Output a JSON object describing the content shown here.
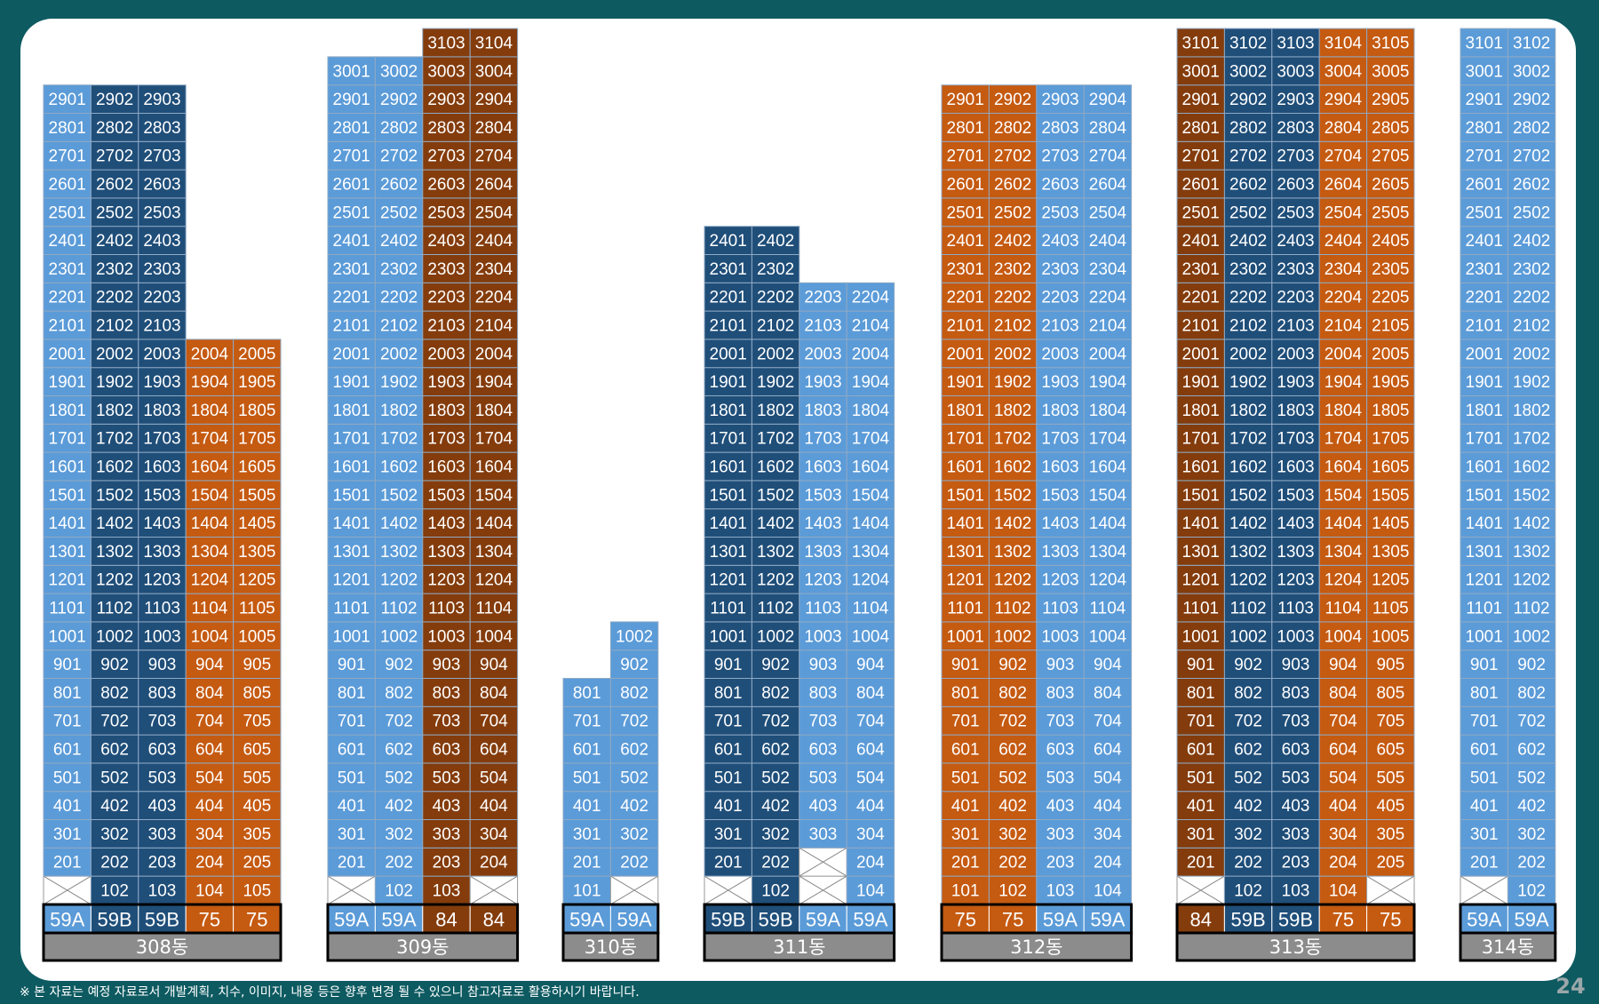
{
  "buildings": [
    {
      "name": "308동",
      "columns": [
        {
          "type": "59A",
          "color": "#5b9bd8",
          "units": [
            null,
            201,
            301,
            401,
            501,
            601,
            701,
            801,
            901,
            1001,
            1101,
            1201,
            1301,
            1401,
            1501,
            1601,
            1701,
            1801,
            1901,
            2001,
            2101,
            2201,
            2301,
            2401,
            2501,
            2601,
            2701,
            2801,
            2901
          ]
        },
        {
          "type": "59B",
          "color": "#1f4e79",
          "units": [
            102,
            202,
            302,
            402,
            502,
            602,
            702,
            802,
            902,
            1002,
            1102,
            1202,
            1302,
            1402,
            1502,
            1602,
            1702,
            1802,
            1902,
            2002,
            2102,
            2202,
            2302,
            2402,
            2502,
            2602,
            2702,
            2802,
            2902
          ]
        },
        {
          "type": "59B",
          "color": "#1f4e79",
          "units": [
            103,
            203,
            303,
            403,
            503,
            603,
            703,
            803,
            903,
            1003,
            1103,
            1203,
            1303,
            1403,
            1503,
            1603,
            1703,
            1803,
            1903,
            2003,
            2103,
            2203,
            2303,
            2403,
            2503,
            2603,
            2703,
            2803,
            2903
          ]
        },
        {
          "type": "75",
          "color": "#c55a11",
          "units": [
            104,
            204,
            304,
            404,
            504,
            604,
            704,
            804,
            904,
            1004,
            1104,
            1204,
            1304,
            1404,
            1504,
            1604,
            1704,
            1804,
            1904,
            2004
          ]
        },
        {
          "type": "75",
          "color": "#c55a11",
          "units": [
            105,
            205,
            305,
            405,
            505,
            605,
            705,
            805,
            905,
            1005,
            1105,
            1205,
            1305,
            1405,
            1505,
            1605,
            1705,
            1805,
            1905,
            2005
          ]
        }
      ]
    },
    {
      "name": "309동",
      "columns": [
        {
          "type": "59A",
          "color": "#5b9bd8",
          "units": [
            null,
            201,
            301,
            401,
            501,
            601,
            701,
            801,
            901,
            1001,
            1101,
            1201,
            1301,
            1401,
            1501,
            1601,
            1701,
            1801,
            1901,
            2001,
            2101,
            2201,
            2301,
            2401,
            2501,
            2601,
            2701,
            2801,
            2901,
            3001
          ]
        },
        {
          "type": "59A",
          "color": "#5b9bd8",
          "units": [
            102,
            202,
            302,
            402,
            502,
            602,
            702,
            802,
            902,
            1002,
            1102,
            1202,
            1302,
            1402,
            1502,
            1602,
            1702,
            1802,
            1902,
            2002,
            2102,
            2202,
            2302,
            2402,
            2502,
            2602,
            2702,
            2802,
            2902,
            3002
          ]
        },
        {
          "type": "84",
          "color": "#843c0c",
          "units": [
            103,
            203,
            303,
            403,
            503,
            603,
            703,
            803,
            903,
            1003,
            1103,
            1203,
            1303,
            1403,
            1503,
            1603,
            1703,
            1803,
            1903,
            2003,
            2103,
            2203,
            2303,
            2403,
            2503,
            2603,
            2703,
            2803,
            2903,
            3003,
            3103
          ]
        },
        {
          "type": "84",
          "color": "#843c0c",
          "units": [
            null,
            204,
            304,
            404,
            504,
            604,
            704,
            804,
            904,
            1004,
            1104,
            1204,
            1304,
            1404,
            1504,
            1604,
            1704,
            1804,
            1904,
            2004,
            2104,
            2204,
            2304,
            2404,
            2504,
            2604,
            2704,
            2804,
            2904,
            3004,
            3104
          ]
        }
      ]
    },
    {
      "name": "310동",
      "columns": [
        {
          "type": "59A",
          "color": "#5b9bd8",
          "units": [
            101,
            201,
            301,
            401,
            501,
            601,
            701,
            801
          ]
        },
        {
          "type": "59A",
          "color": "#5b9bd8",
          "units": [
            null,
            202,
            302,
            402,
            502,
            602,
            702,
            802,
            902,
            1002
          ]
        }
      ]
    },
    {
      "name": "311동",
      "columns": [
        {
          "type": "59B",
          "color": "#1f4e79",
          "units": [
            null,
            201,
            301,
            401,
            501,
            601,
            701,
            801,
            901,
            1001,
            1101,
            1201,
            1301,
            1401,
            1501,
            1601,
            1701,
            1801,
            1901,
            2001,
            2101,
            2201,
            2301,
            2401
          ]
        },
        {
          "type": "59B",
          "color": "#1f4e79",
          "units": [
            102,
            202,
            302,
            402,
            502,
            602,
            702,
            802,
            902,
            1002,
            1102,
            1202,
            1302,
            1402,
            1502,
            1602,
            1702,
            1802,
            1902,
            2002,
            2102,
            2202,
            2302,
            2402
          ]
        },
        {
          "type": "59A",
          "color": "#5b9bd8",
          "units": [
            null,
            null,
            303,
            403,
            503,
            603,
            703,
            803,
            903,
            1003,
            1103,
            1203,
            1303,
            1403,
            1503,
            1603,
            1703,
            1803,
            1903,
            2003,
            2103,
            2203
          ]
        },
        {
          "type": "59A",
          "color": "#5b9bd8",
          "units": [
            104,
            204,
            304,
            404,
            504,
            604,
            704,
            804,
            904,
            1004,
            1104,
            1204,
            1304,
            1404,
            1504,
            1604,
            1704,
            1804,
            1904,
            2004,
            2104,
            2204
          ]
        }
      ]
    },
    {
      "name": "312동",
      "columns": [
        {
          "type": "75",
          "color": "#c55a11",
          "units": [
            101,
            201,
            301,
            401,
            501,
            601,
            701,
            801,
            901,
            1001,
            1101,
            1201,
            1301,
            1401,
            1501,
            1601,
            1701,
            1801,
            1901,
            2001,
            2101,
            2201,
            2301,
            2401,
            2501,
            2601,
            2701,
            2801,
            2901
          ]
        },
        {
          "type": "75",
          "color": "#c55a11",
          "units": [
            102,
            202,
            302,
            402,
            502,
            602,
            702,
            802,
            902,
            1002,
            1102,
            1202,
            1302,
            1402,
            1502,
            1602,
            1702,
            1802,
            1902,
            2002,
            2102,
            2202,
            2302,
            2402,
            2502,
            2602,
            2702,
            2802,
            2902
          ]
        },
        {
          "type": "59A",
          "color": "#5b9bd8",
          "units": [
            103,
            203,
            303,
            403,
            503,
            603,
            703,
            803,
            903,
            1003,
            1103,
            1203,
            1303,
            1403,
            1503,
            1603,
            1703,
            1803,
            1903,
            2003,
            2103,
            2203,
            2303,
            2403,
            2503,
            2603,
            2703,
            2803,
            2903
          ]
        },
        {
          "type": "59A",
          "color": "#5b9bd8",
          "units": [
            104,
            204,
            304,
            404,
            504,
            604,
            704,
            804,
            904,
            1004,
            1104,
            1204,
            1304,
            1404,
            1504,
            1604,
            1704,
            1804,
            1904,
            2004,
            2104,
            2204,
            2304,
            2404,
            2504,
            2604,
            2704,
            2804,
            2904
          ]
        }
      ]
    },
    {
      "name": "313동",
      "columns": [
        {
          "type": "84",
          "color": "#843c0c",
          "units": [
            null,
            201,
            301,
            401,
            501,
            601,
            701,
            801,
            901,
            1001,
            1101,
            1201,
            1301,
            1401,
            1501,
            1601,
            1701,
            1801,
            1901,
            2001,
            2101,
            2201,
            2301,
            2401,
            2501,
            2601,
            2701,
            2801,
            2901,
            3001,
            3101
          ]
        },
        {
          "type": "59B",
          "color": "#1f4e79",
          "units": [
            102,
            202,
            302,
            402,
            502,
            602,
            702,
            802,
            902,
            1002,
            1102,
            1202,
            1302,
            1402,
            1502,
            1602,
            1702,
            1802,
            1902,
            2002,
            2102,
            2202,
            2302,
            2402,
            2502,
            2602,
            2702,
            2802,
            2902,
            3002,
            3102
          ]
        },
        {
          "type": "59B",
          "color": "#1f4e79",
          "units": [
            103,
            203,
            303,
            403,
            503,
            603,
            703,
            803,
            903,
            1003,
            1103,
            1203,
            1303,
            1403,
            1503,
            1603,
            1703,
            1803,
            1903,
            2003,
            2103,
            2203,
            2303,
            2403,
            2503,
            2603,
            2703,
            2803,
            2903,
            3003,
            3103
          ]
        },
        {
          "type": "75",
          "color": "#c55a11",
          "units": [
            104,
            204,
            304,
            404,
            504,
            604,
            704,
            804,
            904,
            1004,
            1104,
            1204,
            1304,
            1404,
            1504,
            1604,
            1704,
            1804,
            1904,
            2004,
            2104,
            2204,
            2304,
            2404,
            2504,
            2604,
            2704,
            2804,
            2904,
            3004,
            3104
          ]
        },
        {
          "type": "75",
          "color": "#c55a11",
          "units": [
            null,
            205,
            305,
            405,
            505,
            605,
            705,
            805,
            905,
            1005,
            1105,
            1205,
            1305,
            1405,
            1505,
            1605,
            1705,
            1805,
            1905,
            2005,
            2105,
            2205,
            2305,
            2405,
            2505,
            2605,
            2705,
            2805,
            2905,
            3005,
            3105
          ]
        }
      ]
    },
    {
      "name": "314동",
      "columns": [
        {
          "type": "59A",
          "color": "#5b9bd8",
          "units": [
            null,
            201,
            301,
            401,
            501,
            601,
            701,
            801,
            901,
            1001,
            1101,
            1201,
            1301,
            1401,
            1501,
            1601,
            1701,
            1801,
            1901,
            2001,
            2101,
            2201,
            2301,
            2401,
            2501,
            2601,
            2701,
            2801,
            2901,
            3001,
            3101
          ]
        },
        {
          "type": "59A",
          "color": "#5b9bd8",
          "units": [
            102,
            202,
            302,
            402,
            502,
            602,
            702,
            802,
            902,
            1002,
            1102,
            1202,
            1302,
            1402,
            1502,
            1602,
            1702,
            1802,
            1902,
            2002,
            2102,
            2202,
            2302,
            2402,
            2502,
            2602,
            2702,
            2802,
            2902,
            3002,
            3102
          ]
        }
      ]
    }
  ],
  "footer": {
    "note": "※ 본 자료는 예정 자료로서 개발계획, 치수, 이미지, 내용 등은 향후 변경 될 수 있으니 참고자료로 활용하시기 바랍니다.",
    "page": "24"
  }
}
